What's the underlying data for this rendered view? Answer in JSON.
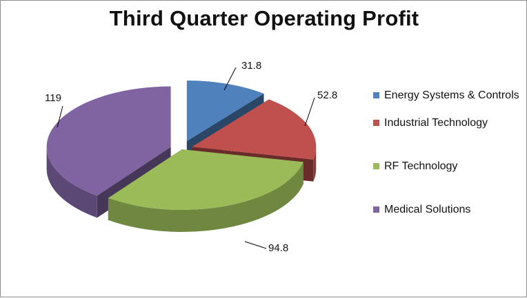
{
  "chart_data": {
    "type": "pie",
    "title": "Third Quarter Operating Profit",
    "three_d": true,
    "exploded": true,
    "legend_position": "right",
    "categories": [
      "Energy Systems & Controls",
      "Industrial Technology",
      "RF Technology",
      "Medical Solutions"
    ],
    "values": [
      31.8,
      52.8,
      94.8,
      119
    ],
    "data_labels": [
      "31.8",
      "52.8",
      "94.8",
      "119"
    ],
    "colors": [
      "#4f81bd",
      "#c0504d",
      "#9bbb59",
      "#8064a2"
    ]
  }
}
